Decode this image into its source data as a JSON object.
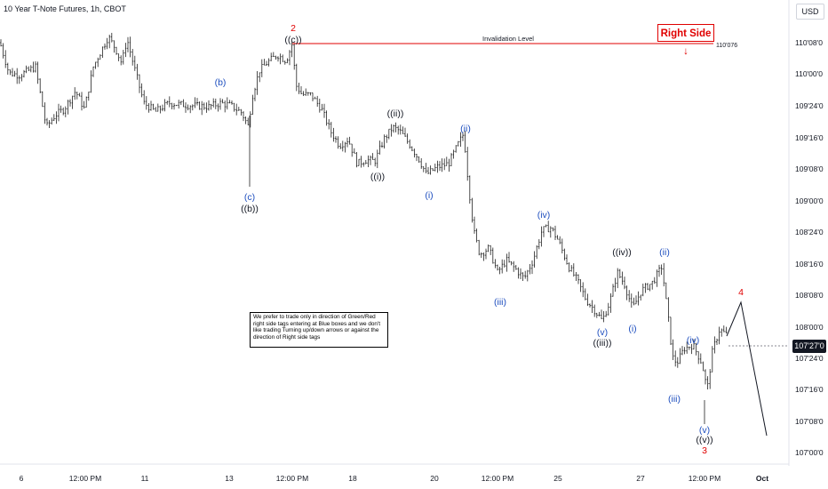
{
  "header": {
    "title": "10 Year T-Note Futures, 1h, CBOT",
    "currency": "USD"
  },
  "chart_data": {
    "type": "candlestick",
    "y_ticks": [
      "110'08'0",
      "110'00'0",
      "109'24'0",
      "109'16'0",
      "109'08'0",
      "109'00'0",
      "108'24'0",
      "108'16'0",
      "108'08'0",
      "108'00'0",
      "107'24'0",
      "107'16'0",
      "107'08'0",
      "107'00'0"
    ],
    "x_ticks": [
      "6",
      "12:00 PM",
      "11",
      "13",
      "12:00 PM",
      "18",
      "20",
      "12:00 PM",
      "25",
      "27",
      "12:00 PM",
      "Oct"
    ],
    "price_path": [
      [
        0,
        110.25
      ],
      [
        10,
        110.0
      ],
      [
        22,
        109.98
      ],
      [
        40,
        110.05
      ],
      [
        52,
        109.55
      ],
      [
        62,
        109.65
      ],
      [
        72,
        109.7
      ],
      [
        85,
        109.85
      ],
      [
        95,
        109.7
      ],
      [
        105,
        110.05
      ],
      [
        115,
        110.2
      ],
      [
        122,
        110.3
      ],
      [
        130,
        110.2
      ],
      [
        137,
        110.08
      ],
      [
        143,
        110.28
      ],
      [
        152,
        110.02
      ],
      [
        162,
        109.75
      ],
      [
        175,
        109.68
      ],
      [
        190,
        109.75
      ],
      [
        215,
        109.73
      ],
      [
        235,
        109.72
      ],
      [
        248,
        109.75
      ],
      [
        260,
        109.73
      ],
      [
        272,
        109.67
      ],
      [
        280,
        109.55
      ],
      [
        283,
        109.78
      ],
      [
        292,
        110.02
      ],
      [
        300,
        110.08
      ],
      [
        312,
        110.15
      ],
      [
        322,
        110.1
      ],
      [
        329,
        110.24
      ],
      [
        333,
        109.9
      ],
      [
        340,
        109.82
      ],
      [
        350,
        109.82
      ],
      [
        362,
        109.7
      ],
      [
        372,
        109.52
      ],
      [
        382,
        109.4
      ],
      [
        392,
        109.45
      ],
      [
        402,
        109.25
      ],
      [
        412,
        109.28
      ],
      [
        422,
        109.27
      ],
      [
        432,
        109.45
      ],
      [
        442,
        109.55
      ],
      [
        450,
        109.52
      ],
      [
        460,
        109.42
      ],
      [
        472,
        109.28
      ],
      [
        480,
        109.16
      ],
      [
        492,
        109.22
      ],
      [
        505,
        109.25
      ],
      [
        515,
        109.4
      ],
      [
        522,
        109.5
      ],
      [
        527,
        109.1
      ],
      [
        533,
        108.7
      ],
      [
        540,
        108.5
      ],
      [
        550,
        108.55
      ],
      [
        560,
        108.35
      ],
      [
        570,
        108.45
      ],
      [
        580,
        108.38
      ],
      [
        590,
        108.3
      ],
      [
        600,
        108.45
      ],
      [
        610,
        108.7
      ],
      [
        620,
        108.72
      ],
      [
        628,
        108.62
      ],
      [
        640,
        108.4
      ],
      [
        650,
        108.28
      ],
      [
        660,
        108.12
      ],
      [
        668,
        108.05
      ],
      [
        678,
        107.95
      ],
      [
        686,
        108.1
      ],
      [
        695,
        108.35
      ],
      [
        703,
        108.25
      ],
      [
        712,
        108.05
      ],
      [
        722,
        108.2
      ],
      [
        735,
        108.27
      ],
      [
        745,
        108.4
      ],
      [
        752,
        107.98
      ],
      [
        757,
        107.65
      ],
      [
        762,
        107.6
      ],
      [
        770,
        107.72
      ],
      [
        780,
        107.75
      ],
      [
        790,
        107.6
      ],
      [
        796,
        107.38
      ],
      [
        802,
        107.7
      ],
      [
        810,
        107.88
      ],
      [
        820,
        107.82
      ]
    ],
    "hlines": [
      {
        "label": "Invalidation Level",
        "value": "110'076",
        "color": "#e00000"
      }
    ],
    "last_price": "107'27'0",
    "projection": {
      "wave4_label": "4",
      "color": "#131722"
    },
    "wave_labels": [
      {
        "text": "2",
        "color": "#e00000"
      },
      {
        "text": "((c))",
        "color": "#131722"
      },
      {
        "text": "(b)",
        "color": "#1f4fbf"
      },
      {
        "text": "(c)",
        "color": "#1f4fbf"
      },
      {
        "text": "((b))",
        "color": "#131722"
      },
      {
        "text": "((ii))",
        "color": "#131722"
      },
      {
        "text": "((i))",
        "color": "#131722"
      },
      {
        "text": "(ii)",
        "color": "#1f4fbf"
      },
      {
        "text": "(i)",
        "color": "#1f4fbf"
      },
      {
        "text": "(iv)",
        "color": "#1f4fbf"
      },
      {
        "text": "(iii)",
        "color": "#1f4fbf"
      },
      {
        "text": "((iv))",
        "color": "#131722"
      },
      {
        "text": "(v)",
        "color": "#1f4fbf"
      },
      {
        "text": "((iii))",
        "color": "#131722"
      },
      {
        "text": "(ii)",
        "color": "#1f4fbf"
      },
      {
        "text": "(i)",
        "color": "#1f4fbf"
      },
      {
        "text": "(iv)",
        "color": "#1f4fbf"
      },
      {
        "text": "(iii)",
        "color": "#1f4fbf"
      },
      {
        "text": "(v)",
        "color": "#1f4fbf"
      },
      {
        "text": "((v))",
        "color": "#131722"
      },
      {
        "text": "3",
        "color": "#e00000"
      },
      {
        "text": "4",
        "color": "#e00000"
      }
    ]
  },
  "note": "We prefer to trade only in direction of Green/Red right side tags entering at Blue boxes and we don't like trading Turning up/down arrows or against the direction of Right side tags",
  "right_side_tag": "Right Side",
  "right_side_arrow": "↓"
}
